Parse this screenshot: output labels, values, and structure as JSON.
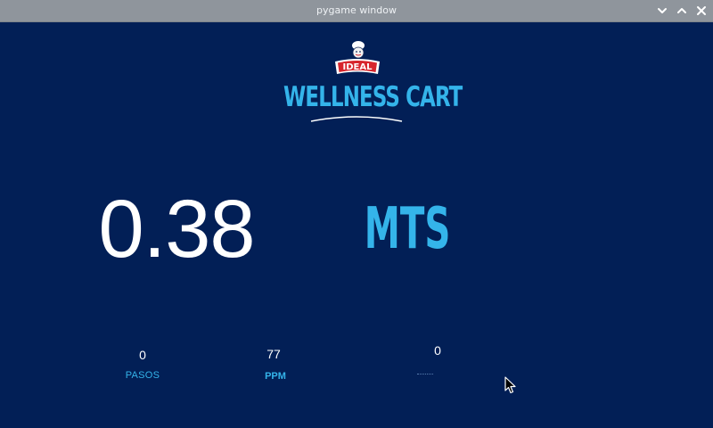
{
  "window": {
    "title": "pygame window",
    "minimize_icon": "chevron-down-icon",
    "maximize_icon": "chevron-up-icon",
    "close_icon": "close-icon"
  },
  "header": {
    "logo_text": "IDEAL",
    "app_title": "WELLNESS CART"
  },
  "distance": {
    "value": "0.38",
    "unit": "MTS"
  },
  "stats": {
    "steps": {
      "value": "0",
      "label": "PASOS"
    },
    "ppm": {
      "value": "77",
      "label": "PPM"
    },
    "third": {
      "value": "0"
    }
  },
  "colors": {
    "background": "#021f56",
    "accent": "#34b4ea",
    "titlebar": "#8f959c",
    "logo_red": "#d7252c"
  }
}
